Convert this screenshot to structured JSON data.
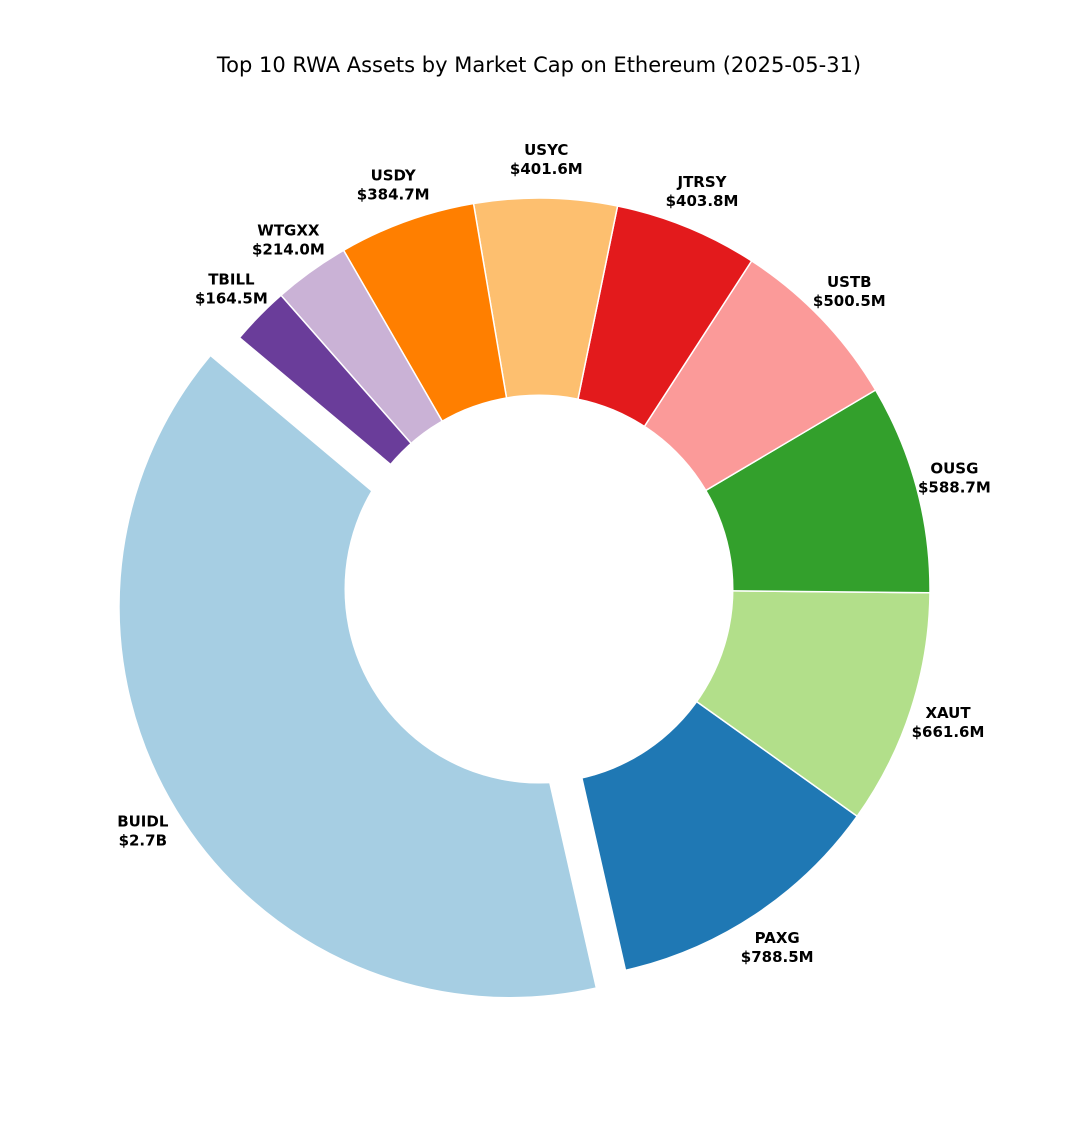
{
  "chart_data": {
    "type": "pie",
    "subtype": "donut",
    "title": "Top 10 RWA Assets by Market Cap on Ethereum (2025-05-31)",
    "unit_hint": "market cap shown in label text",
    "startangle_deg": 140,
    "counterclock": true,
    "hole_ratio": 0.5,
    "labeldistance": 1.1,
    "background_color": "#ffffff",
    "label_text_color": "#000000",
    "wedge_edge_color": "#ffffff",
    "legend": "none",
    "slices": [
      {
        "label": "BUIDL",
        "value_musd": 2700.0,
        "display_value": "$2.7B",
        "color": "#a6cee3",
        "explode": 0.087
      },
      {
        "label": "PAXG",
        "value_musd": 788.5,
        "display_value": "$788.5M",
        "color": "#1f78b4",
        "explode": 0
      },
      {
        "label": "XAUT",
        "value_musd": 661.6,
        "display_value": "$661.6M",
        "color": "#b2df8a",
        "explode": 0
      },
      {
        "label": "OUSG",
        "value_musd": 588.7,
        "display_value": "$588.7M",
        "color": "#33a02c",
        "explode": 0
      },
      {
        "label": "USTB",
        "value_musd": 500.5,
        "display_value": "$500.5M",
        "color": "#fb9a99",
        "explode": 0
      },
      {
        "label": "JTRSY",
        "value_musd": 403.8,
        "display_value": "$403.8M",
        "color": "#e31a1c",
        "explode": 0
      },
      {
        "label": "USYC",
        "value_musd": 401.6,
        "display_value": "$401.6M",
        "color": "#fdbf6f",
        "explode": 0
      },
      {
        "label": "USDY",
        "value_musd": 384.7,
        "display_value": "$384.7M",
        "color": "#ff7f00",
        "explode": 0
      },
      {
        "label": "WTGXX",
        "value_musd": 214.0,
        "display_value": "$214.0M",
        "color": "#cab2d6",
        "explode": 0
      },
      {
        "label": "TBILL",
        "value_musd": 164.5,
        "display_value": "$164.5M",
        "color": "#6a3d9a",
        "explode": 0
      }
    ]
  }
}
